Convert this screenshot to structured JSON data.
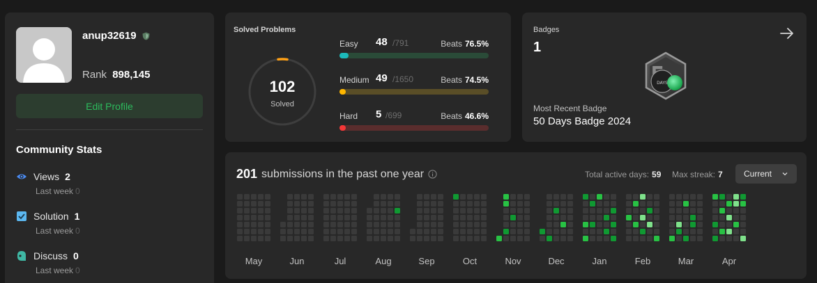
{
  "profile": {
    "username": "anup32619",
    "rank_label": "Rank",
    "rank_value": "898,145",
    "edit_label": "Edit Profile",
    "avatar_icon": "user-silhouette-icon"
  },
  "community": {
    "title": "Community Stats",
    "stats": [
      {
        "label": "Views",
        "value": "2",
        "sub_label": "Last week",
        "sub_value": "0",
        "icon": "eye-icon",
        "color": "#4a8cf5"
      },
      {
        "label": "Solution",
        "value": "1",
        "sub_label": "Last week",
        "sub_value": "0",
        "icon": "checkbox-icon",
        "color": "#5bb7f0"
      },
      {
        "label": "Discuss",
        "value": "0",
        "sub_label": "Last week",
        "sub_value": "0",
        "icon": "chat-icon",
        "color": "#3fb8a4"
      }
    ]
  },
  "solved": {
    "title": "Solved Problems",
    "total": "102",
    "total_label": "Solved",
    "items": [
      {
        "name": "Easy",
        "count": "48",
        "total": "/791",
        "beats_label": "Beats",
        "beats": "76.5%",
        "fraction": 0.061,
        "color": "#1cbaba",
        "track": "#2a4b38"
      },
      {
        "name": "Medium",
        "count": "49",
        "total": "/1650",
        "beats_label": "Beats",
        "beats": "74.5%",
        "fraction": 0.03,
        "color": "#ffb700",
        "track": "#5a4e27"
      },
      {
        "name": "Hard",
        "count": "5",
        "total": "/699",
        "beats_label": "Beats",
        "beats": "46.6%",
        "fraction": 0.007,
        "color": "#f63737",
        "track": "#5a2d2d"
      }
    ]
  },
  "badges": {
    "title": "Badges",
    "count": "1",
    "recent_label": "Most Recent Badge",
    "recent_name": "50 Days Badge 2024",
    "badge_text": "DAYS",
    "badge_icon": "50-days-badge-icon",
    "arrow_icon": "arrow-right-icon"
  },
  "submissions": {
    "count": "201",
    "text": "submissions in the past one year",
    "active_label": "Total active days:",
    "active_value": "59",
    "streak_label": "Max streak:",
    "streak_value": "7",
    "select_value": "Current",
    "months": [
      "May",
      "Jun",
      "Jul",
      "Aug",
      "Sep",
      "Oct",
      "Nov",
      "Dec",
      "Jan",
      "Feb",
      "Mar",
      "Apr"
    ],
    "colors": {
      "empty": "#3a3a3a",
      "level1": "#109932",
      "level2": "#28c244",
      "level3": "#7fe18b"
    }
  }
}
